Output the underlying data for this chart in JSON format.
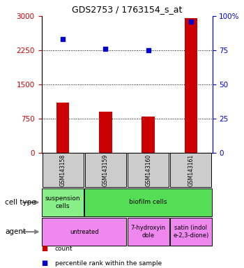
{
  "title": "GDS2753 / 1763154_s_at",
  "samples": [
    "GSM143158",
    "GSM143159",
    "GSM143160",
    "GSM143161"
  ],
  "counts": [
    1100,
    900,
    800,
    2950
  ],
  "percentile_ranks": [
    83,
    76,
    75,
    96
  ],
  "left_ylim": [
    0,
    3000
  ],
  "left_yticks": [
    0,
    750,
    1500,
    2250,
    3000
  ],
  "right_ylim": [
    0,
    100
  ],
  "right_yticks": [
    0,
    25,
    50,
    75,
    100
  ],
  "right_yticklabels": [
    "0",
    "25",
    "50",
    "75",
    "100%"
  ],
  "bar_color": "#cc0000",
  "dot_color": "#0000cc",
  "left_tick_color": "#cc0000",
  "right_tick_color": "#0000cc",
  "cell_type_groups": [
    {
      "text": "suspension\ncells",
      "span": 1,
      "color": "#88ee88"
    },
    {
      "text": "biofilm cells",
      "span": 3,
      "color": "#55dd55"
    }
  ],
  "agent_groups": [
    {
      "text": "untreated",
      "span": 2,
      "color": "#ee88ee"
    },
    {
      "text": "7-hydroxyin\ndole",
      "span": 1,
      "color": "#ee88ee"
    },
    {
      "text": "satin (indol\ne-2,3-dione)",
      "span": 1,
      "color": "#ee88ee"
    }
  ],
  "legend_items": [
    {
      "color": "#cc0000",
      "label": "count"
    },
    {
      "color": "#0000cc",
      "label": "percentile rank within the sample"
    }
  ],
  "grid_yticks": [
    750,
    1500,
    2250
  ],
  "sample_box_color": "#cccccc",
  "bg_color": "#ffffff"
}
